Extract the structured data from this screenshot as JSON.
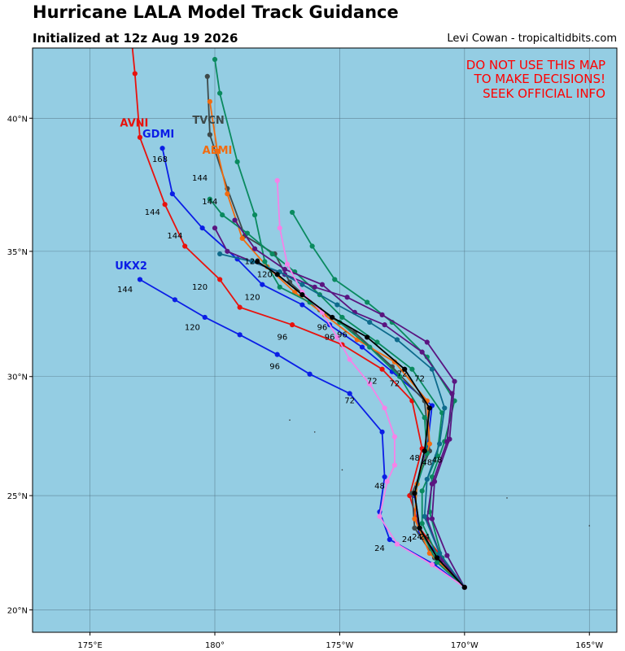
{
  "header": {
    "title": "Hurricane LALA Model Track Guidance",
    "init": "Initialized at 12z Aug 19 2026",
    "credit": "Levi Cowan - tropicaltidbits.com"
  },
  "warning": [
    "DO NOT USE THIS MAP",
    "TO MAKE DECISIONS!",
    "SEEK OFFICIAL INFO"
  ],
  "colors": {
    "ocean": "#94cde3",
    "warning": "#ff0000",
    "AVNI": "#e8120d",
    "GDMI": "#0b1ee6",
    "UKX2": "#0b1ee6",
    "TVCN": "#3e4a4a",
    "AEMI": "#f26b0f",
    "ensA": "#0a8a5f",
    "ensB": "#5a1580",
    "ensC": "#0e6b8c",
    "ensD": "#f582e8",
    "ensE": "#000000"
  },
  "chart_data": {
    "type": "map",
    "projection": "mercator",
    "lon_range": [
      172.7,
      196.1
    ],
    "lat_range": [
      19.0,
      42.5
    ],
    "lon_ticks": [
      {
        "value": 175,
        "label": "175°E"
      },
      {
        "value": 180,
        "label": "180°"
      },
      {
        "value": 185,
        "label": "175°W"
      },
      {
        "value": 190,
        "label": "170°W"
      },
      {
        "value": 195,
        "label": "165°W"
      }
    ],
    "lat_ticks": [
      {
        "value": 20,
        "label": "20°N"
      },
      {
        "value": 25,
        "label": "25°N"
      },
      {
        "value": 30,
        "label": "30°N"
      },
      {
        "value": 35,
        "label": "35°N"
      },
      {
        "value": 40,
        "label": "40°N"
      }
    ],
    "grid": true,
    "tracks": [
      {
        "name": "AVNI",
        "label": "AVNI",
        "colorKey": "AVNI",
        "points": [
          [
            190,
            21.0
          ],
          [
            188.2,
            23.6
          ],
          [
            187.8,
            25.0
          ],
          [
            188.3,
            27.0
          ],
          [
            187.9,
            29.0
          ],
          [
            186.7,
            30.3
          ],
          [
            185.1,
            31.3
          ],
          [
            183.1,
            32.1
          ],
          [
            181.0,
            32.8
          ],
          [
            180.2,
            33.9
          ],
          [
            178.8,
            35.2
          ],
          [
            178.0,
            36.8
          ],
          [
            177.0,
            39.3
          ],
          [
            176.8,
            41.6
          ],
          [
            176.7,
            42.5
          ]
        ]
      },
      {
        "name": "GDMI",
        "label": "GDMI",
        "colorKey": "GDMI",
        "points": [
          [
            190,
            21.0
          ],
          [
            188.2,
            23.4
          ],
          [
            188.0,
            25.0
          ],
          [
            188.5,
            27.0
          ],
          [
            188.7,
            28.8
          ],
          [
            187.1,
            30.2
          ],
          [
            185.9,
            31.2
          ],
          [
            184.6,
            32.1
          ],
          [
            183.5,
            32.9
          ],
          [
            181.9,
            33.7
          ],
          [
            180.9,
            34.7
          ],
          [
            179.5,
            35.9
          ],
          [
            178.3,
            37.2
          ],
          [
            177.9,
            38.9
          ]
        ]
      },
      {
        "name": "UKX2",
        "label": "UKX2",
        "colorKey": "UKX2",
        "points": [
          [
            190,
            21.0
          ],
          [
            188.8,
            22.0
          ],
          [
            187.0,
            23.1
          ],
          [
            186.6,
            24.3
          ],
          [
            186.8,
            25.8
          ],
          [
            186.7,
            27.7
          ],
          [
            185.4,
            29.3
          ],
          [
            183.8,
            30.1
          ],
          [
            182.5,
            30.9
          ],
          [
            181.0,
            31.7
          ],
          [
            179.6,
            32.4
          ],
          [
            178.4,
            33.1
          ],
          [
            177.0,
            33.9
          ]
        ]
      },
      {
        "name": "TVCN",
        "label": "TVCN",
        "colorKey": "TVCN",
        "points": [
          [
            190,
            21.0
          ],
          [
            188.8,
            22.3
          ],
          [
            188.0,
            23.6
          ],
          [
            187.9,
            25.1
          ],
          [
            188.6,
            26.9
          ],
          [
            188.4,
            29.0
          ],
          [
            187.1,
            30.4
          ],
          [
            185.6,
            31.8
          ],
          [
            184.2,
            32.7
          ],
          [
            183.0,
            33.8
          ],
          [
            182.4,
            34.9
          ],
          [
            181.2,
            35.6
          ],
          [
            180.5,
            37.4
          ],
          [
            179.8,
            39.4
          ],
          [
            179.7,
            41.5
          ]
        ]
      },
      {
        "name": "AEMI",
        "label": "AEMI",
        "colorKey": "AEMI",
        "points": [
          [
            190,
            21.0
          ],
          [
            188.6,
            22.5
          ],
          [
            188.0,
            24.0
          ],
          [
            188.1,
            25.5
          ],
          [
            188.6,
            27.2
          ],
          [
            188.5,
            29.0
          ],
          [
            187.2,
            30.6
          ],
          [
            185.7,
            31.5
          ],
          [
            184.4,
            32.5
          ],
          [
            183.2,
            33.4
          ],
          [
            182.1,
            34.4
          ],
          [
            181.1,
            35.5
          ],
          [
            180.5,
            37.2
          ],
          [
            180.1,
            38.8
          ],
          [
            179.8,
            40.6
          ]
        ]
      },
      {
        "name": "ens01",
        "colorKey": "ensA",
        "points": [
          [
            190,
            21.0
          ],
          [
            189.0,
            22.2
          ],
          [
            188.3,
            23.8
          ],
          [
            188.3,
            25.2
          ],
          [
            188.9,
            26.7
          ],
          [
            189.1,
            28.5
          ],
          [
            187.9,
            30.3
          ],
          [
            186.5,
            31.4
          ],
          [
            185.1,
            32.4
          ],
          [
            184.2,
            33.3
          ],
          [
            183.2,
            34.2
          ],
          [
            182.3,
            34.9
          ],
          [
            181.3,
            35.7
          ],
          [
            180.3,
            36.4
          ],
          [
            179.8,
            37.0
          ]
        ]
      },
      {
        "name": "ens02",
        "colorKey": "ensA",
        "points": [
          [
            190,
            21.0
          ],
          [
            189.1,
            22.3
          ],
          [
            188.6,
            24.3
          ],
          [
            188.7,
            25.8
          ],
          [
            189.2,
            27.3
          ],
          [
            189.6,
            29.0
          ],
          [
            188.5,
            30.8
          ],
          [
            187.1,
            32.2
          ],
          [
            186.1,
            33.0
          ],
          [
            184.8,
            33.9
          ],
          [
            183.9,
            35.2
          ],
          [
            183.1,
            36.5
          ]
        ]
      },
      {
        "name": "ens03",
        "colorKey": "ensA",
        "points": [
          [
            190,
            21.0
          ],
          [
            188.9,
            22.1
          ],
          [
            188.2,
            23.6
          ],
          [
            188.0,
            25.1
          ],
          [
            188.5,
            26.8
          ],
          [
            188.4,
            28.3
          ],
          [
            187.4,
            30.0
          ],
          [
            186.2,
            31.2
          ],
          [
            185.0,
            32.2
          ],
          [
            183.8,
            33.0
          ],
          [
            182.6,
            33.6
          ],
          [
            182.0,
            34.6
          ],
          [
            181.6,
            36.4
          ],
          [
            180.9,
            38.4
          ],
          [
            180.2,
            40.9
          ],
          [
            180.0,
            42.1
          ]
        ]
      },
      {
        "name": "ens04",
        "colorKey": "ensB",
        "points": [
          [
            190,
            21.0
          ],
          [
            189.3,
            22.4
          ],
          [
            188.7,
            24.0
          ],
          [
            188.8,
            25.6
          ],
          [
            189.4,
            27.4
          ],
          [
            189.6,
            29.8
          ],
          [
            188.5,
            31.4
          ],
          [
            186.7,
            32.5
          ],
          [
            185.3,
            33.2
          ],
          [
            184.0,
            33.6
          ],
          [
            182.8,
            34.1
          ],
          [
            181.5,
            34.6
          ],
          [
            180.5,
            35.0
          ],
          [
            180.0,
            35.9
          ]
        ]
      },
      {
        "name": "ens05",
        "colorKey": "ensB",
        "points": [
          [
            190,
            21.0
          ],
          [
            189.1,
            22.2
          ],
          [
            188.5,
            24.0
          ],
          [
            188.7,
            25.5
          ],
          [
            189.3,
            27.3
          ],
          [
            189.5,
            29.3
          ],
          [
            188.3,
            31.0
          ],
          [
            186.8,
            32.1
          ],
          [
            185.6,
            32.6
          ],
          [
            184.3,
            33.7
          ],
          [
            182.8,
            34.3
          ],
          [
            181.6,
            35.1
          ],
          [
            180.8,
            36.2
          ]
        ]
      },
      {
        "name": "ens06",
        "colorKey": "ensC",
        "points": [
          [
            190,
            21.0
          ],
          [
            189.0,
            22.5
          ],
          [
            188.4,
            24.1
          ],
          [
            188.5,
            25.7
          ],
          [
            189.0,
            27.2
          ],
          [
            189.2,
            28.7
          ],
          [
            188.7,
            30.3
          ],
          [
            187.3,
            31.5
          ],
          [
            186.2,
            32.2
          ],
          [
            184.9,
            32.9
          ],
          [
            183.5,
            33.7
          ],
          [
            182.6,
            34.2
          ],
          [
            181.5,
            34.6
          ],
          [
            180.2,
            34.9
          ]
        ]
      },
      {
        "name": "ens07",
        "colorKey": "ensD",
        "points": [
          [
            190,
            21.0
          ],
          [
            188.7,
            22.0
          ],
          [
            187.3,
            22.9
          ],
          [
            186.6,
            24.1
          ],
          [
            186.9,
            25.6
          ],
          [
            187.2,
            26.3
          ],
          [
            187.2,
            27.5
          ],
          [
            186.8,
            28.7
          ],
          [
            186.2,
            29.7
          ],
          [
            185.4,
            30.7
          ],
          [
            184.9,
            31.6
          ],
          [
            184.3,
            32.6
          ],
          [
            183.5,
            33.4
          ],
          [
            182.9,
            34.5
          ],
          [
            182.6,
            35.9
          ],
          [
            182.5,
            37.7
          ]
        ]
      },
      {
        "name": "ens08",
        "colorKey": "ensE",
        "points": [
          [
            190,
            21.0
          ],
          [
            188.9,
            22.3
          ],
          [
            188.2,
            23.6
          ],
          [
            188.0,
            25.1
          ],
          [
            188.4,
            26.9
          ],
          [
            188.6,
            28.7
          ],
          [
            187.6,
            30.3
          ],
          [
            186.1,
            31.6
          ],
          [
            184.7,
            32.4
          ],
          [
            183.5,
            33.3
          ],
          [
            182.5,
            34.1
          ],
          [
            181.7,
            34.6
          ]
        ]
      }
    ],
    "model_labels": [
      {
        "text": "AVNI",
        "colorKey": "AVNI",
        "lon": 176.2,
        "lat": 39.7
      },
      {
        "text": "GDMI",
        "colorKey": "GDMI",
        "lon": 177.1,
        "lat": 39.3
      },
      {
        "text": "TVCN",
        "colorKey": "TVCN",
        "lon": 179.1,
        "lat": 39.8
      },
      {
        "text": "AEMI",
        "colorKey": "AEMI",
        "lon": 179.5,
        "lat": 38.7
      },
      {
        "text": "UKX2",
        "colorKey": "UKX2",
        "lon": 176.0,
        "lat": 34.3
      }
    ],
    "hour_labels": [
      {
        "text": "168",
        "lon": 177.8,
        "lat": 38.4
      },
      {
        "text": "144",
        "lon": 179.4,
        "lat": 37.7
      },
      {
        "text": "144",
        "lon": 179.8,
        "lat": 36.8
      },
      {
        "text": "144",
        "lon": 177.5,
        "lat": 36.4
      },
      {
        "text": "144",
        "lon": 178.4,
        "lat": 35.5
      },
      {
        "text": "144",
        "lon": 176.4,
        "lat": 33.4
      },
      {
        "text": "120",
        "lon": 181.5,
        "lat": 34.5
      },
      {
        "text": "120",
        "lon": 182.0,
        "lat": 34.0
      },
      {
        "text": "120",
        "lon": 181.5,
        "lat": 33.1
      },
      {
        "text": "120",
        "lon": 179.4,
        "lat": 33.5
      },
      {
        "text": "120",
        "lon": 179.1,
        "lat": 31.9
      },
      {
        "text": "96",
        "lon": 182.7,
        "lat": 31.5
      },
      {
        "text": "96",
        "lon": 184.3,
        "lat": 31.9
      },
      {
        "text": "96",
        "lon": 184.6,
        "lat": 31.5
      },
      {
        "text": "96",
        "lon": 185.1,
        "lat": 31.6
      },
      {
        "text": "96",
        "lon": 182.4,
        "lat": 30.3
      },
      {
        "text": "72",
        "lon": 186.3,
        "lat": 29.7
      },
      {
        "text": "72",
        "lon": 187.2,
        "lat": 29.6
      },
      {
        "text": "72",
        "lon": 187.5,
        "lat": 30.0
      },
      {
        "text": "72",
        "lon": 188.2,
        "lat": 29.8
      },
      {
        "text": "72",
        "lon": 185.4,
        "lat": 28.9
      },
      {
        "text": "48",
        "lon": 188.0,
        "lat": 26.5
      },
      {
        "text": "48",
        "lon": 188.5,
        "lat": 26.3
      },
      {
        "text": "48",
        "lon": 188.9,
        "lat": 26.4
      },
      {
        "text": "48",
        "lon": 186.6,
        "lat": 25.3
      },
      {
        "text": "24",
        "lon": 187.7,
        "lat": 23.0
      },
      {
        "text": "24",
        "lon": 188.1,
        "lat": 23.1
      },
      {
        "text": "24",
        "lon": 188.4,
        "lat": 23.1
      },
      {
        "text": "24",
        "lon": 186.6,
        "lat": 22.6
      }
    ],
    "islands": [
      [
        183.0,
        28.2
      ],
      [
        184.0,
        27.7
      ],
      [
        185.1,
        26.1
      ],
      [
        191.7,
        24.9
      ],
      [
        195.0,
        23.7
      ]
    ]
  }
}
